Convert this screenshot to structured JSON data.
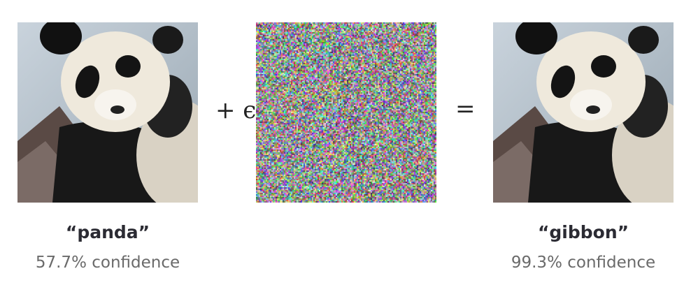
{
  "operators": {
    "plus": "+ ϵ",
    "equals": "="
  },
  "inputs": {
    "left": {
      "label": "“panda”",
      "confidence": "57.7% confidence"
    },
    "right": {
      "label": "“gibbon”",
      "confidence": "99.3% confidence"
    }
  },
  "images": {
    "left": "panda-photo",
    "noise": "random-noise",
    "right": "panda-photo-adversarial"
  }
}
